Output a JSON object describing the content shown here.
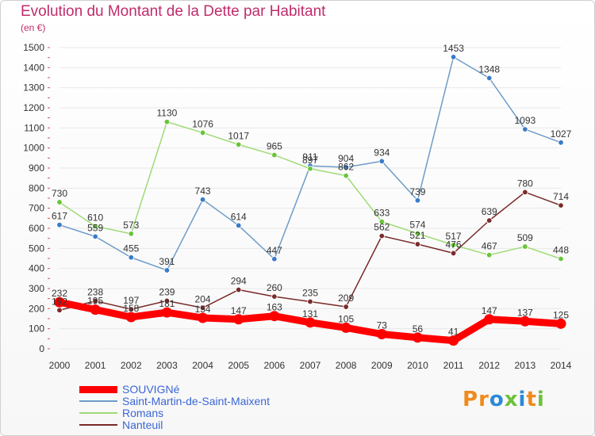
{
  "title": "Evolution du Montant de la Dette par Habitant",
  "unit_label": "(en €)",
  "logo_text": "Proxiti",
  "colors": {
    "title": "#c02c6c",
    "axis_text": "#333333",
    "grid": "#e8e8e8",
    "legend_text": "#3b66d6"
  },
  "chart_data": {
    "type": "line",
    "title": "Evolution du Montant de la Dette par Habitant",
    "ylabel": "(en €)",
    "xlabel": "",
    "x": [
      2000,
      2001,
      2002,
      2003,
      2004,
      2005,
      2006,
      2007,
      2008,
      2009,
      2010,
      2011,
      2012,
      2013,
      2014
    ],
    "ylim": [
      0,
      1500
    ],
    "yticks": [
      0,
      100,
      200,
      300,
      400,
      500,
      600,
      700,
      800,
      900,
      1000,
      1100,
      1200,
      1300,
      1400,
      1500
    ],
    "grid": true,
    "legend": "bottom-left",
    "series": [
      {
        "name": "SOUVIGNé",
        "color": "#ff0000",
        "marker": "#ff0000",
        "emphasis": true,
        "values": [
          232,
          195,
          158,
          181,
          154,
          147,
          163,
          131,
          105,
          73,
          56,
          41,
          147,
          137,
          125
        ],
        "labels": [
          "232",
          "195",
          "158",
          "181",
          "154",
          "147",
          "163",
          "131",
          "105",
          "73",
          "56",
          "41",
          "147",
          "137",
          "125"
        ]
      },
      {
        "name": "Saint-Martin-de-Saint-Maixent",
        "color": "#6e9cc8",
        "marker": "#3a7bc8",
        "values": [
          617,
          559,
          455,
          391,
          743,
          614,
          447,
          911,
          904,
          934,
          739,
          1453,
          1348,
          1093,
          1027
        ],
        "labels": [
          "617",
          "559",
          "455",
          "391",
          "743",
          "614",
          "447",
          "911",
          "904",
          "934",
          "739",
          "1453",
          "1348",
          "1093",
          "1027"
        ]
      },
      {
        "name": "Romans",
        "color": "#9fdb77",
        "marker": "#6ac43a",
        "values": [
          730,
          610,
          573,
          1130,
          1076,
          1017,
          965,
          897,
          862,
          633,
          574,
          517,
          467,
          509,
          448
        ],
        "labels": [
          "730",
          "610",
          "573",
          "1130",
          "1076",
          "1017",
          "965",
          "897",
          "862",
          "633",
          "574",
          "517",
          "467",
          "509",
          "448"
        ]
      },
      {
        "name": "Nanteuil",
        "color": "#7a2a2a",
        "marker": "#7a2a2a",
        "values": [
          192,
          238,
          197,
          239,
          204,
          294,
          260,
          235,
          209,
          562,
          521,
          476,
          639,
          780,
          714
        ],
        "labels": [
          "192",
          "238",
          "197",
          "239",
          "204",
          "294",
          "260",
          "235",
          "209",
          "562",
          "521",
          "476",
          "639",
          "780",
          "714"
        ]
      }
    ]
  }
}
